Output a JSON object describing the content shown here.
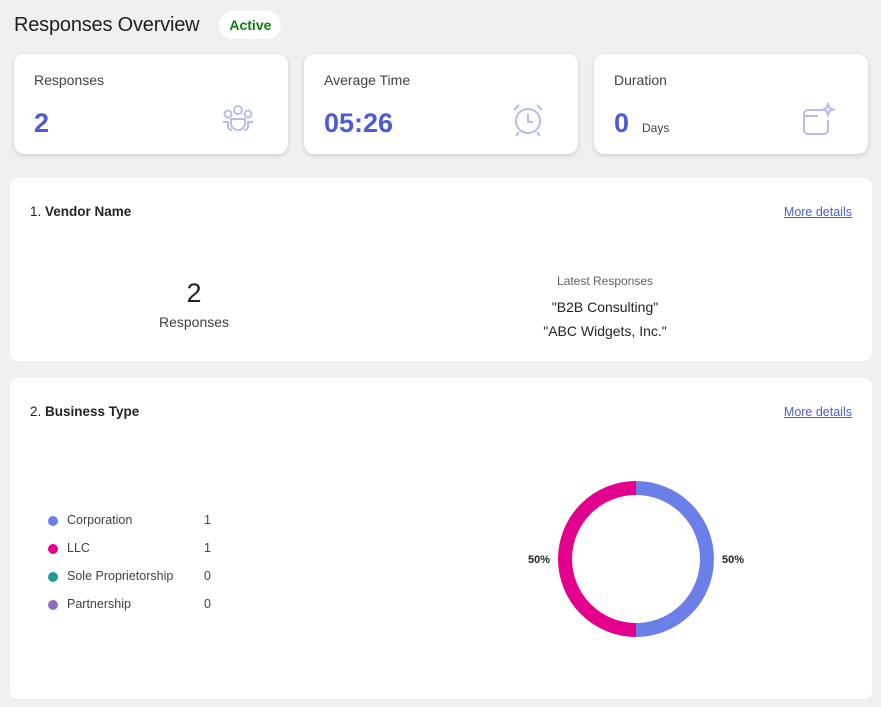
{
  "header": {
    "title": "Responses Overview",
    "status": "Active"
  },
  "stats": [
    {
      "label": "Responses",
      "value": "2",
      "unit": "",
      "icon": "people-group-icon"
    },
    {
      "label": "Average Time",
      "value": "05:26",
      "unit": "",
      "icon": "alarm-clock-icon"
    },
    {
      "label": "Duration",
      "value": "0",
      "unit": "Days",
      "icon": "calendar-sparkle-icon"
    }
  ],
  "questions": [
    {
      "number": "1.",
      "title": "Vendor Name",
      "more_details": "More details",
      "count": "2",
      "count_label": "Responses",
      "latest_title": "Latest Responses",
      "latest": [
        "\"B2B Consulting\"",
        "\"ABC Widgets, Inc.\""
      ]
    },
    {
      "number": "2.",
      "title": "Business Type",
      "more_details": "More details",
      "legend": [
        {
          "name": "Corporation",
          "count": "1",
          "color": "#6c7fe8"
        },
        {
          "name": "LLC",
          "count": "1",
          "color": "#e3008c"
        },
        {
          "name": "Sole Proprietorship",
          "count": "0",
          "color": "#1f9c98"
        },
        {
          "name": "Partnership",
          "count": "0",
          "color": "#8f6cc4"
        }
      ]
    }
  ],
  "chart_data": {
    "type": "pie",
    "categories": [
      "Corporation",
      "LLC",
      "Sole Proprietorship",
      "Partnership"
    ],
    "values": [
      1,
      1,
      0,
      0
    ],
    "labels": [
      "50%",
      "50%"
    ],
    "colors": [
      "#6c7fe8",
      "#e3008c",
      "#1f9c98",
      "#8f6cc4"
    ],
    "title": "",
    "donut": true
  },
  "colors": {
    "accent": "#4f5bd5",
    "active": "#107c10",
    "icon": "#b8bde8"
  }
}
